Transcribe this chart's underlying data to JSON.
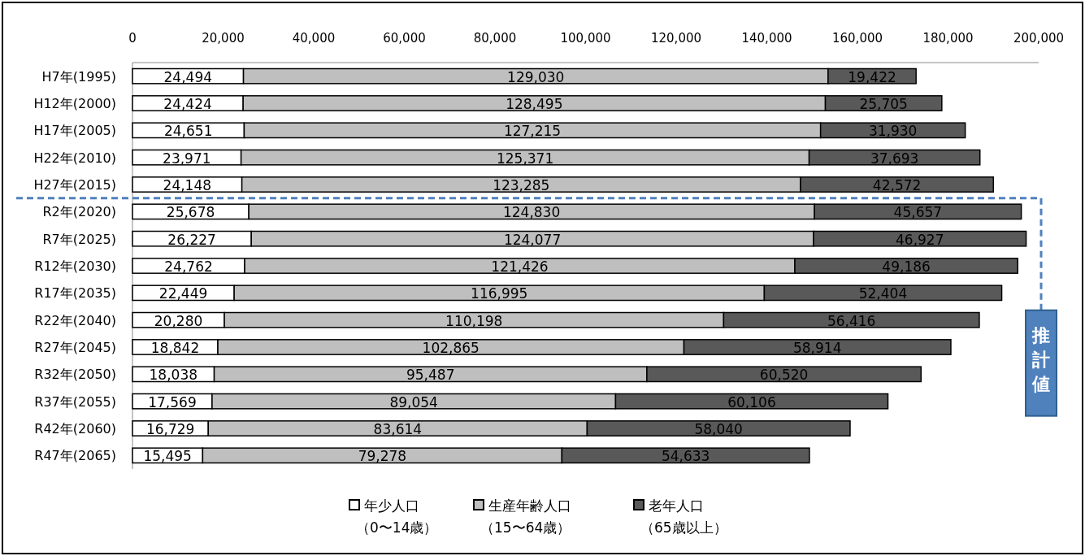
{
  "chart_data": {
    "type": "bar",
    "orientation": "horizontal",
    "stacked": true,
    "categories": [
      "H7年(1995)",
      "H12年(2000)",
      "H17年(2005)",
      "H22年(2010)",
      "H27年(2015)",
      "R2年(2020)",
      "R7年(2025)",
      "R12年(2030)",
      "R17年(2035)",
      "R22年(2040)",
      "R27年(2045)",
      "R32年(2050)",
      "R37年(2055)",
      "R42年(2060)",
      "R47年(2065)"
    ],
    "series": [
      {
        "name": "年少人口（0〜14歳）",
        "color": "#ffffff",
        "values": [
          24494,
          24424,
          24651,
          23971,
          24148,
          25678,
          26227,
          24762,
          22449,
          20280,
          18842,
          18038,
          17569,
          16729,
          15495
        ],
        "value_labels": [
          "24,494",
          "24,424",
          "24,651",
          "23,971",
          "24,148",
          "25,678",
          "26,227",
          "24,762",
          "22,449",
          "20,280",
          "18,842",
          "18,038",
          "17,569",
          "16,729",
          "15,495"
        ]
      },
      {
        "name": "生産年齢人口（15〜64歳）",
        "color": "#bfbfbf",
        "values": [
          129030,
          128495,
          127215,
          125371,
          123285,
          124830,
          124077,
          121426,
          116995,
          110198,
          102865,
          95487,
          89054,
          83614,
          79278
        ],
        "value_labels": [
          "129,030",
          "128,495",
          "127,215",
          "125,371",
          "123,285",
          "124,830",
          "124,077",
          "121,426",
          "116,995",
          "110,198",
          "102,865",
          "95,487",
          "89,054",
          "83,614",
          "79,278"
        ]
      },
      {
        "name": "老年人口（65歳以上）",
        "color": "#595959",
        "values": [
          19422,
          25705,
          31930,
          37693,
          42572,
          45657,
          46927,
          49186,
          52404,
          56416,
          58914,
          60520,
          60106,
          58040,
          54633
        ],
        "value_labels": [
          "19,422",
          "25,705",
          "31,930",
          "37,693",
          "42,572",
          "45,657",
          "46,927",
          "49,186",
          "52,404",
          "56,416",
          "58,914",
          "60,520",
          "60,106",
          "58,040",
          "54,633"
        ]
      }
    ],
    "xlim": [
      0,
      200000
    ],
    "xticks": [
      0,
      {
        "value": 20000,
        "label": "20,000"
      },
      {
        "value": 40000,
        "label": "40,000"
      },
      {
        "value": 60000,
        "label": "60,000"
      },
      {
        "value": 80000,
        "label": "80,000"
      },
      {
        "value": 100000,
        "label": "100,000"
      },
      {
        "value": 120000,
        "label": "120,000"
      },
      {
        "value": 140000,
        "label": "140,000"
      },
      {
        "value": 160000,
        "label": "160,000"
      },
      {
        "value": 180000,
        "label": "180,000"
      },
      {
        "value": 200000,
        "label": "200,000"
      }
    ],
    "annotations": [
      "推計値"
    ],
    "legend": "bottom"
  }
}
